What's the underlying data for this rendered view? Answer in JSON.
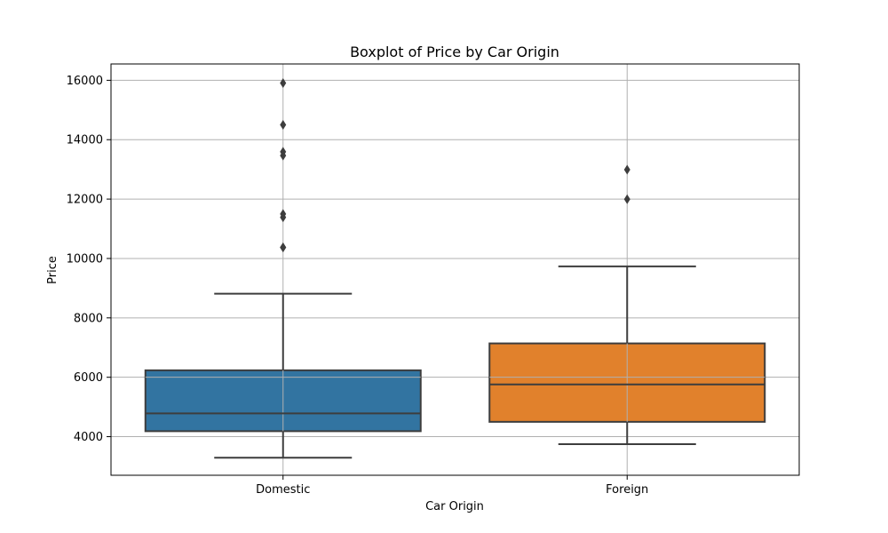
{
  "chart_data": {
    "type": "box",
    "title": "Boxplot of Price by Car Origin",
    "xlabel": "Car Origin",
    "ylabel": "Price",
    "ylim": [
      2700,
      16550
    ],
    "yticks": [
      4000,
      6000,
      8000,
      10000,
      12000,
      14000,
      16000
    ],
    "ytick_labels": [
      "4000",
      "6000",
      "8000",
      "10000",
      "12000",
      "14000",
      "16000"
    ],
    "grid": true,
    "categories": [
      "Domestic",
      "Foreign"
    ],
    "boxes": [
      {
        "category": "Domestic",
        "color": "#3274a1",
        "whisker_low": 3291,
        "q1": 4184,
        "median": 4782,
        "q3": 6234,
        "whisker_high": 8814,
        "outliers": [
          10371,
          10372,
          11385,
          11497,
          13466,
          13594,
          14500,
          15906
        ]
      },
      {
        "category": "Foreign",
        "color": "#e1812c",
        "whisker_low": 3748,
        "q1": 4499,
        "median": 5759,
        "q3": 7140,
        "whisker_high": 9735,
        "outliers": [
          11995,
          12990
        ]
      }
    ]
  }
}
